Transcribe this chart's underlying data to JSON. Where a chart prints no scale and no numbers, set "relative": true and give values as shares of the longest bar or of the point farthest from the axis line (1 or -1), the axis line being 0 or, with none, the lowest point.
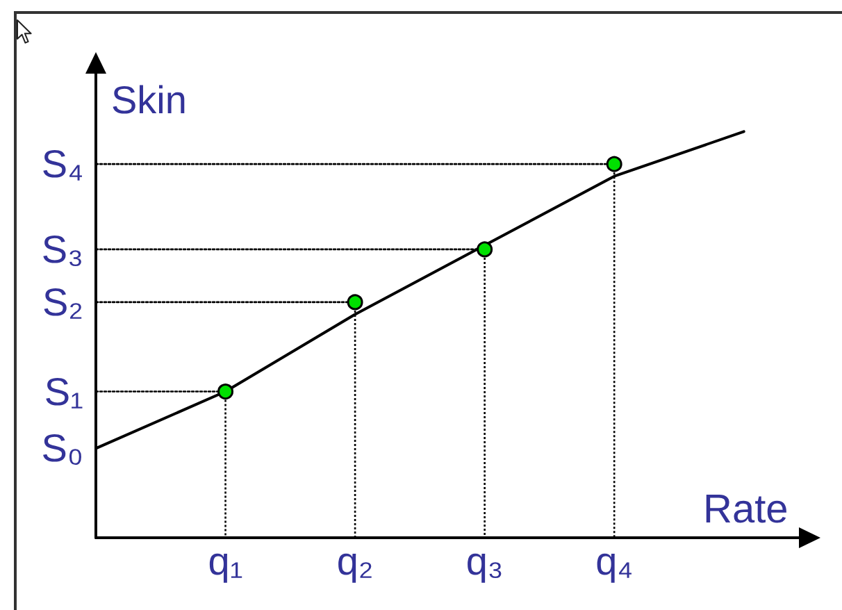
{
  "chart_data": {
    "type": "line",
    "relative": true,
    "xlabel": "Rate",
    "ylabel": "Skin",
    "categories": [
      null,
      "q₁",
      "q₂",
      "q₃",
      "q₄",
      null
    ],
    "series": [
      {
        "name": "S₀",
        "color": "#000000",
        "values": [
          0.22,
          0.36,
          0.55,
          0.72,
          0.89,
          1
        ],
        "marker": "none",
        "line_style": "solid"
      },
      {
        "name": "S₁",
        "color": "#000000",
        "values": [
          0.36,
          0.36,
          null,
          null,
          null,
          null
        ],
        "marker": "none",
        "line_style": "dotted"
      },
      {
        "name": "S₂",
        "color": "#000000",
        "values": [
          0.58,
          0.58,
          0.58,
          null,
          null,
          null
        ],
        "marker": "none",
        "line_style": "dotted"
      },
      {
        "name": "S₃",
        "color": "#000000",
        "values": [
          0.71,
          0.71,
          0.71,
          0.71,
          null,
          null
        ],
        "marker": "none",
        "line_style": "dotted"
      },
      {
        "name": "S₄",
        "color": "#000000",
        "values": [
          0.92,
          0.92,
          0.92,
          0.92,
          0.92,
          null
        ],
        "marker": "none",
        "line_style": "dotted"
      },
      {
        "type": "lollipop",
        "color": "#00e000",
        "values": [
          null,
          0.36,
          0.58,
          0.71,
          0.92,
          null
        ],
        "marker": "circle",
        "line_style": "dotted"
      }
    ]
  }
}
